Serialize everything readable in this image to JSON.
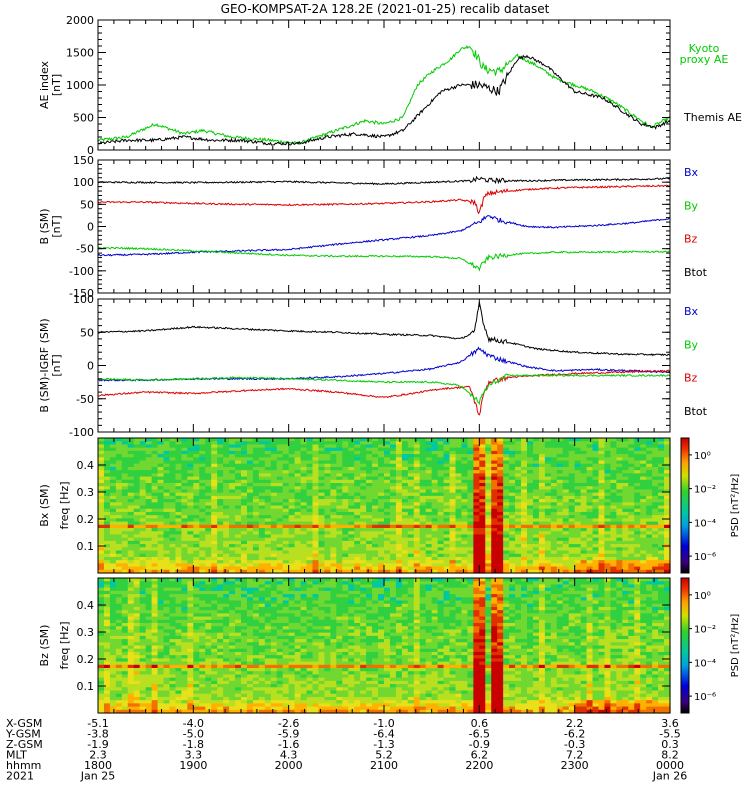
{
  "title": "GEO-KOMPSAT-2A 128.2E (2021-01-25) recalib dataset",
  "colors": {
    "black": "#000000",
    "green": "#00cc00",
    "red": "#dd0000",
    "blue": "#0000cc"
  },
  "chart_data": [
    {
      "type": "line",
      "id": "ae",
      "ylabel": "AE index",
      "yunit": "[nT]",
      "ylim": [
        0,
        2000
      ],
      "yticks": [
        0,
        500,
        1000,
        1500,
        2000
      ],
      "legend": [
        {
          "name": "Kyoto proxy AE",
          "lines": [
            "Kyoto",
            "proxy AE"
          ],
          "color": "#00cc00"
        },
        {
          "name": "Themis AE",
          "lines": [
            "Themis AE"
          ],
          "color": "#000000"
        }
      ],
      "series": [
        {
          "name": "Kyoto proxy AE",
          "color": "#00cc00",
          "x": [
            18.0,
            18.3,
            18.6,
            18.9,
            19.1,
            19.4,
            19.8,
            20.1,
            20.5,
            20.8,
            21.0,
            21.2,
            21.35,
            21.5,
            21.7,
            21.8,
            21.9,
            21.95,
            22.05,
            22.2,
            22.4,
            22.6,
            22.8,
            23.0,
            23.2,
            23.4,
            23.6,
            23.8,
            24.0
          ],
          "y": [
            150,
            200,
            400,
            250,
            300,
            200,
            150,
            100,
            300,
            450,
            400,
            500,
            1000,
            1200,
            1400,
            1550,
            1600,
            1500,
            1250,
            1200,
            1450,
            1300,
            1100,
            1000,
            900,
            750,
            550,
            350,
            500
          ]
        },
        {
          "name": "Themis AE",
          "color": "#000000",
          "x": [
            18.0,
            18.3,
            18.6,
            18.9,
            19.2,
            19.5,
            19.8,
            20.1,
            20.4,
            20.7,
            21.0,
            21.2,
            21.4,
            21.6,
            21.8,
            22.0,
            22.2,
            22.4,
            22.5,
            22.7,
            23.0,
            23.3,
            23.5,
            23.7,
            23.85,
            24.0
          ],
          "y": [
            100,
            150,
            150,
            200,
            150,
            150,
            100,
            100,
            200,
            250,
            200,
            300,
            600,
            900,
            1000,
            1000,
            900,
            1400,
            1450,
            1300,
            900,
            800,
            600,
            400,
            350,
            450
          ]
        }
      ]
    },
    {
      "type": "line",
      "id": "bsm",
      "ylabel": "B (SM)",
      "yunit": "[nT]",
      "ylim": [
        -150,
        150
      ],
      "yticks": [
        -150,
        -100,
        -50,
        0,
        50,
        100,
        150
      ],
      "legend": [
        {
          "name": "Bx",
          "color": "#0000cc"
        },
        {
          "name": "By",
          "color": "#00cc00"
        },
        {
          "name": "Bz",
          "color": "#dd0000"
        },
        {
          "name": "Btot",
          "color": "#000000"
        }
      ],
      "series": [
        {
          "name": "Btot",
          "color": "#000000",
          "x": [
            18.0,
            19.0,
            20.0,
            21.0,
            21.5,
            21.9,
            22.0,
            22.1,
            22.5,
            23.0,
            23.5,
            24.0
          ],
          "y": [
            100,
            99,
            101,
            96,
            100,
            103,
            108,
            104,
            103,
            105,
            106,
            108
          ]
        },
        {
          "name": "Bz",
          "color": "#dd0000",
          "x": [
            18.0,
            18.5,
            19.0,
            19.5,
            20.0,
            20.5,
            21.0,
            21.5,
            21.8,
            21.95,
            22.0,
            22.05,
            22.1,
            22.3,
            22.6,
            23.0,
            23.5,
            24.0
          ],
          "y": [
            55,
            55,
            52,
            50,
            49,
            50,
            52,
            56,
            60,
            55,
            30,
            65,
            75,
            80,
            85,
            88,
            90,
            92
          ]
        },
        {
          "name": "Bx",
          "color": "#0000cc",
          "x": [
            18.0,
            18.5,
            19.0,
            19.5,
            20.0,
            20.3,
            20.6,
            21.0,
            21.5,
            21.8,
            22.0,
            22.1,
            22.2,
            22.5,
            22.8,
            23.2,
            23.6,
            24.0
          ],
          "y": [
            -65,
            -63,
            -58,
            -55,
            -52,
            -45,
            -38,
            -30,
            -20,
            -10,
            10,
            25,
            15,
            0,
            -2,
            2,
            8,
            18
          ]
        },
        {
          "name": "By",
          "color": "#00cc00",
          "x": [
            18.0,
            18.5,
            19.0,
            19.5,
            20.0,
            20.5,
            21.0,
            21.5,
            21.8,
            22.0,
            22.05,
            22.1,
            22.4,
            22.8,
            23.2,
            23.6,
            24.0
          ],
          "y": [
            -48,
            -50,
            -55,
            -60,
            -65,
            -67,
            -67,
            -68,
            -72,
            -95,
            -80,
            -70,
            -62,
            -58,
            -58,
            -57,
            -57
          ]
        }
      ]
    },
    {
      "type": "line",
      "id": "bsmigrf",
      "ylabel": "B (SM)-IGRF (SM)",
      "yunit": "[nT]",
      "ylim": [
        -100,
        100
      ],
      "yticks": [
        -100,
        -50,
        0,
        50,
        100
      ],
      "legend": [
        {
          "name": "Bx",
          "color": "#0000cc"
        },
        {
          "name": "By",
          "color": "#00cc00"
        },
        {
          "name": "Bz",
          "color": "#dd0000"
        },
        {
          "name": "Btot",
          "color": "#000000"
        }
      ],
      "series": [
        {
          "name": "Btot",
          "color": "#000000",
          "x": [
            18.0,
            18.5,
            19.0,
            19.5,
            20.0,
            20.5,
            21.0,
            21.5,
            21.8,
            21.95,
            22.0,
            22.05,
            22.1,
            22.3,
            22.6,
            23.0,
            23.5,
            24.0
          ],
          "y": [
            50,
            52,
            58,
            55,
            52,
            50,
            47,
            45,
            40,
            50,
            95,
            60,
            40,
            35,
            25,
            20,
            17,
            16
          ]
        },
        {
          "name": "Bx",
          "color": "#0000cc",
          "x": [
            18.0,
            18.5,
            19.0,
            19.5,
            20.0,
            20.5,
            21.0,
            21.5,
            21.8,
            22.0,
            22.1,
            22.2,
            22.5,
            22.8,
            23.2,
            23.6,
            24.0
          ],
          "y": [
            -22,
            -22,
            -20,
            -20,
            -20,
            -17,
            -12,
            -5,
            5,
            25,
            15,
            10,
            -2,
            -8,
            -6,
            -8,
            -10
          ]
        },
        {
          "name": "Bz",
          "color": "#dd0000",
          "x": [
            18.0,
            18.5,
            19.0,
            19.5,
            20.0,
            20.5,
            21.0,
            21.3,
            21.6,
            21.9,
            22.0,
            22.05,
            22.1,
            22.3,
            22.6,
            23.0,
            23.5,
            24.0
          ],
          "y": [
            -45,
            -40,
            -42,
            -38,
            -35,
            -40,
            -48,
            -42,
            -35,
            -32,
            -75,
            -40,
            -25,
            -18,
            -15,
            -12,
            -10,
            -8
          ]
        },
        {
          "name": "By",
          "color": "#00cc00",
          "x": [
            18.0,
            18.5,
            19.0,
            19.5,
            20.0,
            20.5,
            21.0,
            21.5,
            21.8,
            22.0,
            22.05,
            22.1,
            22.3,
            22.6,
            23.0,
            23.5,
            24.0
          ],
          "y": [
            -20,
            -22,
            -20,
            -18,
            -20,
            -22,
            -25,
            -25,
            -30,
            -55,
            -40,
            -30,
            -15,
            -15,
            -15,
            -15,
            -15
          ]
        }
      ]
    },
    {
      "type": "heatmap",
      "id": "bxspec",
      "ylabel": "Bx (SM)",
      "yunit": "freq [Hz]",
      "ylim": [
        0,
        0.5
      ],
      "yticks": [
        0.1,
        0.2,
        0.3,
        0.4
      ],
      "colorbar": {
        "label": "PSD [nT²/Hz]",
        "ticks": [
          "10⁰",
          "10⁻²",
          "10⁻⁴",
          "10⁻⁶"
        ],
        "range_log10": [
          -7,
          1
        ]
      },
      "line_frequency_hz": 0.17,
      "burst_times": [
        22.0,
        22.2
      ]
    },
    {
      "type": "heatmap",
      "id": "bzspec",
      "ylabel": "Bz (SM)",
      "yunit": "freq [Hz]",
      "ylim": [
        0,
        0.5
      ],
      "yticks": [
        0.1,
        0.2,
        0.3,
        0.4
      ],
      "colorbar": {
        "label": "PSD [nT²/Hz]",
        "ticks": [
          "10⁰",
          "10⁻²",
          "10⁻⁴",
          "10⁻⁶"
        ],
        "range_log10": [
          -7,
          1
        ]
      },
      "line_frequency_hz": 0.17,
      "burst_times": [
        22.0,
        22.2
      ]
    }
  ],
  "time_axis": {
    "range": [
      18.0,
      24.0
    ],
    "major_ticks": [
      18,
      19,
      20,
      21,
      22,
      23,
      24
    ],
    "rows": [
      {
        "label": "X-GSM",
        "values": [
          "-5.1",
          "-4.0",
          "-2.6",
          "-1.0",
          "0.6",
          "2.2",
          "3.6"
        ]
      },
      {
        "label": "Y-GSM",
        "values": [
          "-3.8",
          "-5.0",
          "-5.9",
          "-6.4",
          "-6.5",
          "-6.2",
          "-5.5"
        ]
      },
      {
        "label": "Z-GSM",
        "values": [
          "-1.9",
          "-1.8",
          "-1.6",
          "-1.3",
          "-0.9",
          "-0.3",
          "0.3"
        ]
      },
      {
        "label": "MLT",
        "values": [
          "2.3",
          "3.3",
          "4.3",
          "5.2",
          "6.2",
          "7.2",
          "8.2"
        ]
      },
      {
        "label": "hhmm",
        "values": [
          "1800",
          "1900",
          "2000",
          "2100",
          "2200",
          "2300",
          "0000"
        ]
      },
      {
        "label": "2021",
        "values": [
          "Jan 25",
          "",
          "",
          "",
          "",
          "",
          "Jan 26"
        ]
      }
    ]
  }
}
